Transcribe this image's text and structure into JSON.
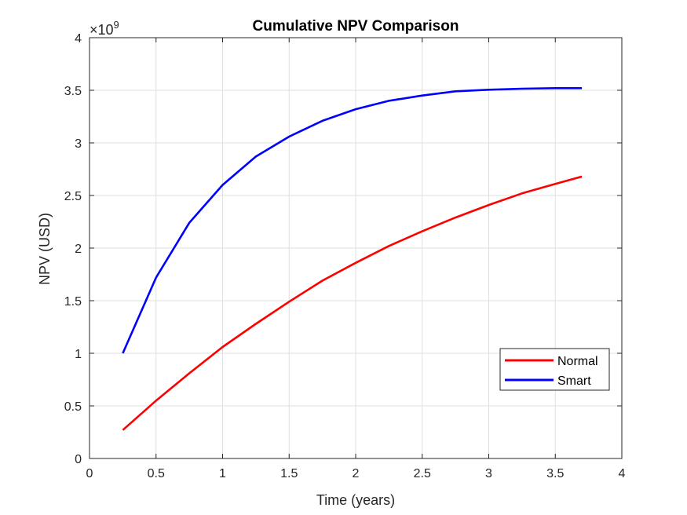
{
  "chart_data": {
    "type": "line",
    "title": "Cumulative NPV Comparison",
    "xlabel": "Time (years)",
    "ylabel": "NPV (USD)",
    "y_exponent_base": "×10",
    "y_exponent_power": "9",
    "xlim": [
      0,
      4
    ],
    "ylim": [
      0,
      4
    ],
    "x_ticks": [
      0,
      0.5,
      1,
      1.5,
      2,
      2.5,
      3,
      3.5,
      4
    ],
    "x_tick_labels": [
      "0",
      "0.5",
      "1",
      "1.5",
      "2",
      "2.5",
      "3",
      "3.5",
      "4"
    ],
    "y_ticks": [
      0,
      0.5,
      1,
      1.5,
      2,
      2.5,
      3,
      3.5,
      4
    ],
    "y_tick_labels": [
      "0",
      "0.5",
      "1",
      "1.5",
      "2",
      "2.5",
      "3",
      "3.5",
      "4"
    ],
    "grid": true,
    "legend_position": "lower-right",
    "series": [
      {
        "name": "Normal",
        "color": "#ff0000",
        "x": [
          0.25,
          0.5,
          0.75,
          1,
          1.25,
          1.5,
          1.75,
          2,
          2.25,
          2.5,
          2.75,
          3,
          3.25,
          3.5,
          3.7
        ],
        "y": [
          0.27,
          0.55,
          0.81,
          1.06,
          1.28,
          1.49,
          1.69,
          1.86,
          2.02,
          2.16,
          2.29,
          2.41,
          2.52,
          2.61,
          2.68
        ]
      },
      {
        "name": "Smart",
        "color": "#0000ff",
        "x": [
          0.25,
          0.5,
          0.75,
          1,
          1.25,
          1.5,
          1.75,
          2,
          2.25,
          2.5,
          2.75,
          3,
          3.25,
          3.5,
          3.7
        ],
        "y": [
          1.0,
          1.72,
          2.24,
          2.6,
          2.87,
          3.06,
          3.21,
          3.32,
          3.4,
          3.45,
          3.49,
          3.505,
          3.515,
          3.52,
          3.52
        ]
      }
    ]
  }
}
